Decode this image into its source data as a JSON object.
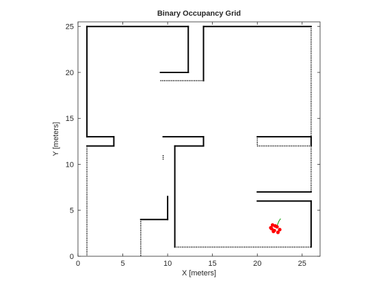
{
  "chart_data": {
    "type": "map",
    "title": "Binary Occupancy Grid",
    "xlabel": "X [meters]",
    "ylabel": "Y [meters]",
    "xlim": [
      0,
      27.0
    ],
    "ylim": [
      0,
      25.5
    ],
    "xticks": [
      0,
      5,
      10,
      15,
      20,
      25
    ],
    "yticks": [
      0,
      5,
      10,
      15,
      20,
      25
    ],
    "grid": false,
    "occupied_color": "#000000",
    "free_color": "#ffffff",
    "walls_solid": [
      [
        [
          1.0,
          25.0
        ],
        [
          12.3,
          25.0
        ]
      ],
      [
        [
          14.0,
          25.0
        ],
        [
          26.0,
          25.0
        ]
      ],
      [
        [
          1.0,
          25.0
        ],
        [
          1.0,
          13.0
        ]
      ],
      [
        [
          12.3,
          25.0
        ],
        [
          12.3,
          20.0
        ]
      ],
      [
        [
          9.2,
          20.0
        ],
        [
          12.3,
          20.0
        ]
      ],
      [
        [
          14.0,
          25.0
        ],
        [
          14.0,
          19.1
        ]
      ],
      [
        [
          1.0,
          13.0
        ],
        [
          4.0,
          13.0
        ]
      ],
      [
        [
          4.0,
          13.0
        ],
        [
          4.0,
          12.0
        ]
      ],
      [
        [
          1.0,
          12.0
        ],
        [
          4.0,
          12.0
        ]
      ],
      [
        [
          9.5,
          13.0
        ],
        [
          14.0,
          13.0
        ]
      ],
      [
        [
          14.0,
          13.0
        ],
        [
          14.0,
          12.0
        ]
      ],
      [
        [
          10.8,
          12.0
        ],
        [
          14.0,
          12.0
        ]
      ],
      [
        [
          10.8,
          12.0
        ],
        [
          10.8,
          1.0
        ]
      ],
      [
        [
          20.0,
          13.0
        ],
        [
          26.0,
          13.0
        ]
      ],
      [
        [
          7.0,
          4.0
        ],
        [
          10.0,
          4.0
        ]
      ],
      [
        [
          10.0,
          4.0
        ],
        [
          10.0,
          6.5
        ]
      ],
      [
        [
          20.0,
          7.0
        ],
        [
          26.0,
          7.0
        ]
      ],
      [
        [
          20.0,
          6.0
        ],
        [
          26.0,
          6.0
        ]
      ],
      [
        [
          26.0,
          13.0
        ],
        [
          26.0,
          12.0
        ]
      ],
      [
        [
          26.0,
          6.0
        ],
        [
          26.0,
          1.0
        ]
      ]
    ],
    "walls_noisy": [
      [
        [
          1.0,
          12.0
        ],
        [
          1.0,
          0.0
        ]
      ],
      [
        [
          26.0,
          25.0
        ],
        [
          26.0,
          13.0
        ]
      ],
      [
        [
          26.0,
          12.0
        ],
        [
          26.0,
          7.0
        ]
      ],
      [
        [
          20.0,
          12.0
        ],
        [
          26.0,
          12.0
        ]
      ],
      [
        [
          10.8,
          1.0
        ],
        [
          26.0,
          1.0
        ]
      ],
      [
        [
          9.2,
          19.1
        ],
        [
          14.0,
          19.1
        ]
      ],
      [
        [
          7.0,
          4.0
        ],
        [
          7.0,
          0.0
        ]
      ],
      [
        [
          9.5,
          11.0
        ],
        [
          9.5,
          10.5
        ]
      ],
      [
        [
          20.0,
          13.0
        ],
        [
          20.0,
          12.0
        ]
      ]
    ],
    "robot": {
      "color": "#ff0000",
      "trace_color": "#00a000",
      "x": [
        21.6,
        21.9,
        22.2,
        22.5,
        22.3,
        21.8,
        21.5,
        21.7,
        22.0
      ],
      "y": [
        3.0,
        2.8,
        3.2,
        2.9,
        2.6,
        2.7,
        3.1,
        3.4,
        3.3
      ],
      "trace_x": [
        22.2,
        22.4,
        22.6
      ],
      "trace_y": [
        3.3,
        3.8,
        4.1
      ]
    }
  }
}
